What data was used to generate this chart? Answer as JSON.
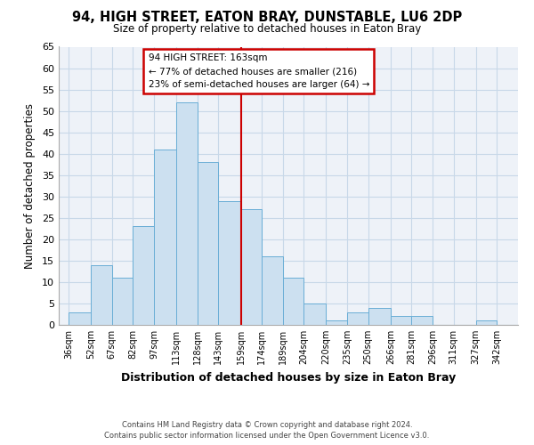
{
  "title": "94, HIGH STREET, EATON BRAY, DUNSTABLE, LU6 2DP",
  "subtitle": "Size of property relative to detached houses in Eaton Bray",
  "xlabel": "Distribution of detached houses by size in Eaton Bray",
  "ylabel": "Number of detached properties",
  "bar_left_edges": [
    36,
    52,
    67,
    82,
    97,
    113,
    128,
    143,
    159,
    174,
    189,
    204,
    220,
    235,
    250,
    266,
    281,
    296,
    311,
    327
  ],
  "bar_widths": [
    16,
    15,
    15,
    15,
    16,
    15,
    15,
    16,
    15,
    15,
    15,
    16,
    15,
    15,
    16,
    15,
    15,
    15,
    16,
    15
  ],
  "bar_heights": [
    3,
    14,
    11,
    23,
    41,
    52,
    38,
    29,
    27,
    16,
    11,
    5,
    1,
    3,
    4,
    2,
    2,
    0,
    0,
    1
  ],
  "bar_color": "#cce0f0",
  "bar_edge_color": "#6aaed6",
  "x_tick_labels": [
    "36sqm",
    "52sqm",
    "67sqm",
    "82sqm",
    "97sqm",
    "113sqm",
    "128sqm",
    "143sqm",
    "159sqm",
    "174sqm",
    "189sqm",
    "204sqm",
    "220sqm",
    "235sqm",
    "250sqm",
    "266sqm",
    "281sqm",
    "296sqm",
    "311sqm",
    "327sqm",
    "342sqm"
  ],
  "x_tick_positions": [
    36,
    52,
    67,
    82,
    97,
    113,
    128,
    143,
    159,
    174,
    189,
    204,
    220,
    235,
    250,
    266,
    281,
    296,
    311,
    327,
    342
  ],
  "ylim": [
    0,
    65
  ],
  "xlim": [
    29,
    357
  ],
  "yticks": [
    0,
    5,
    10,
    15,
    20,
    25,
    30,
    35,
    40,
    45,
    50,
    55,
    60,
    65
  ],
  "vline_x": 159,
  "vline_color": "#cc0000",
  "annotation_title": "94 HIGH STREET: 163sqm",
  "annotation_line1": "← 77% of detached houses are smaller (216)",
  "annotation_line2": "23% of semi-detached houses are larger (64) →",
  "footer_line1": "Contains HM Land Registry data © Crown copyright and database right 2024.",
  "footer_line2": "Contains public sector information licensed under the Open Government Licence v3.0.",
  "grid_color": "#c8d8e8",
  "background_color": "#eef2f8"
}
